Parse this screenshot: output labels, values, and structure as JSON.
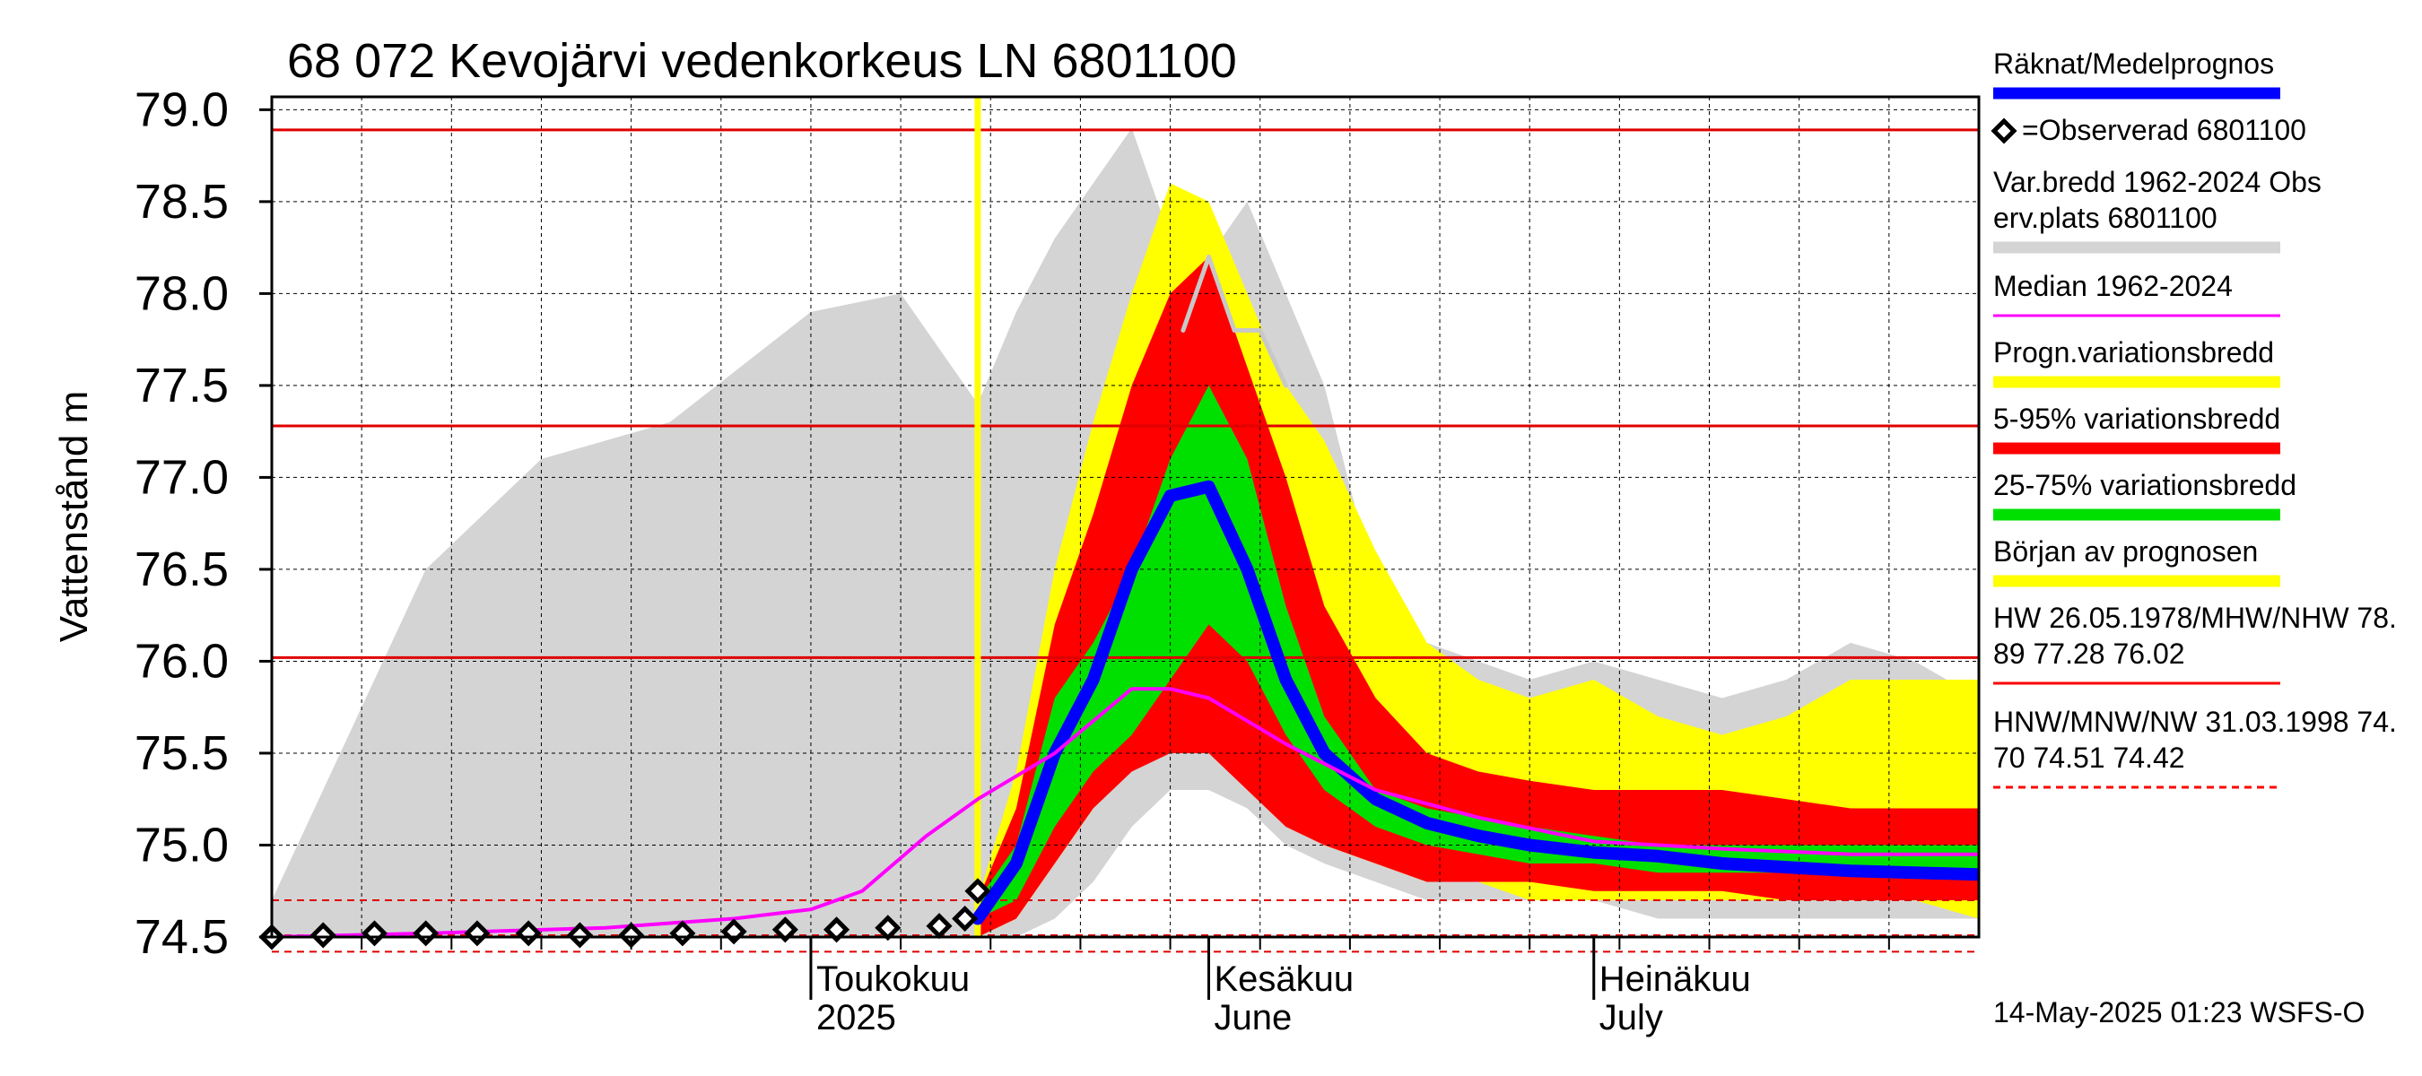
{
  "chart_data": {
    "type": "line",
    "title": "68 072 Kevojärvi vedenkorkeus LN 6801100",
    "ylabel": "Vattenstånd m",
    "ylim": [
      74.5,
      79.0
    ],
    "yticks": [
      "79.0",
      "78.5",
      "78.0",
      "77.5",
      "77.0",
      "76.5",
      "76.0",
      "75.5",
      "75.0",
      "74.5"
    ],
    "xlim": [
      "2025-03-20",
      "2025-07-31"
    ],
    "x_month_labels": [
      {
        "date": "2025-05-01",
        "line1": "Toukokuu",
        "line2": "2025"
      },
      {
        "date": "2025-06-01",
        "line1": "Kesäkuu",
        "line2": "June"
      },
      {
        "date": "2025-07-01",
        "line1": "Heinäkuu",
        "line2": "July"
      }
    ],
    "forecast_start": "2025-05-14",
    "reference_lines": [
      {
        "name": "HW",
        "value": 78.89,
        "style": "solid"
      },
      {
        "name": "MHW",
        "value": 77.28,
        "style": "solid"
      },
      {
        "name": "NHW",
        "value": 76.02,
        "style": "solid"
      },
      {
        "name": "HNW",
        "value": 74.7,
        "style": "dashed"
      },
      {
        "name": "MNW",
        "value": 74.51,
        "style": "dashed"
      },
      {
        "name": "NW",
        "value": 74.42,
        "style": "dashed"
      }
    ],
    "band_dates": [
      "2025-03-20",
      "2025-04-01",
      "2025-04-10",
      "2025-04-20",
      "2025-05-01",
      "2025-05-08",
      "2025-05-14",
      "2025-05-17",
      "2025-05-20",
      "2025-05-23",
      "2025-05-26",
      "2025-05-29",
      "2025-06-01",
      "2025-06-04",
      "2025-06-07",
      "2025-06-10",
      "2025-06-14",
      "2025-06-18",
      "2025-06-22",
      "2025-06-26",
      "2025-07-01",
      "2025-07-06",
      "2025-07-11",
      "2025-07-16",
      "2025-07-21",
      "2025-07-26",
      "2025-07-31"
    ],
    "series": [
      {
        "name": "Var.bredd 1962-2024 Obs erv.plats 6801100",
        "type": "band",
        "color": "#d4d4d4",
        "lower": [
          74.5,
          74.5,
          74.5,
          74.5,
          74.5,
          74.5,
          74.5,
          74.5,
          74.6,
          74.8,
          75.1,
          75.3,
          75.3,
          75.2,
          75.0,
          74.9,
          74.8,
          74.7,
          74.7,
          74.7,
          74.7,
          74.6,
          74.6,
          74.6,
          74.6,
          74.6,
          74.6
        ],
        "upper": [
          74.7,
          76.5,
          77.1,
          77.3,
          77.9,
          78.0,
          77.4,
          77.9,
          78.3,
          78.6,
          78.9,
          78.3,
          78.2,
          78.5,
          78.0,
          77.5,
          76.4,
          76.1,
          76.0,
          75.9,
          76.0,
          75.9,
          75.8,
          75.9,
          76.1,
          76.0,
          75.8
        ]
      },
      {
        "name": "Progn.variationsbredd",
        "type": "band",
        "color": "#ffff00",
        "lower": [
          null,
          null,
          null,
          null,
          null,
          null,
          74.5,
          74.6,
          74.9,
          75.2,
          75.5,
          75.6,
          75.6,
          75.4,
          75.2,
          75.0,
          74.9,
          74.8,
          74.8,
          74.7,
          74.7,
          74.7,
          74.7,
          74.7,
          74.7,
          74.7,
          74.6
        ],
        "upper": [
          null,
          null,
          null,
          null,
          null,
          null,
          74.7,
          75.4,
          76.5,
          77.3,
          78.0,
          78.6,
          78.5,
          78.0,
          77.5,
          77.2,
          76.6,
          76.1,
          75.9,
          75.8,
          75.9,
          75.7,
          75.6,
          75.7,
          75.9,
          75.9,
          75.9
        ]
      },
      {
        "name": "5-95% variationsbredd",
        "type": "band",
        "color": "#ff0000",
        "lower": [
          null,
          null,
          null,
          null,
          null,
          null,
          74.5,
          74.6,
          74.9,
          75.2,
          75.4,
          75.5,
          75.5,
          75.3,
          75.1,
          75.0,
          74.9,
          74.8,
          74.8,
          74.8,
          74.75,
          74.75,
          74.75,
          74.7,
          74.7,
          74.7,
          74.7
        ],
        "upper": [
          null,
          null,
          null,
          null,
          null,
          null,
          74.7,
          75.2,
          76.2,
          76.8,
          77.5,
          78.0,
          78.2,
          77.6,
          77.0,
          76.3,
          75.8,
          75.5,
          75.4,
          75.35,
          75.3,
          75.3,
          75.3,
          75.25,
          75.2,
          75.2,
          75.2
        ]
      },
      {
        "name": "25-75% variationsbredd",
        "type": "band",
        "color": "#00e000",
        "lower": [
          null,
          null,
          null,
          null,
          null,
          null,
          74.6,
          74.7,
          75.1,
          75.4,
          75.6,
          75.9,
          76.2,
          76.0,
          75.6,
          75.3,
          75.1,
          75.0,
          74.95,
          74.9,
          74.9,
          74.85,
          74.85,
          74.85,
          74.85,
          74.85,
          74.85
        ],
        "upper": [
          null,
          null,
          null,
          null,
          null,
          null,
          74.7,
          75.0,
          75.8,
          76.1,
          76.5,
          77.1,
          77.5,
          77.1,
          76.3,
          75.7,
          75.3,
          75.2,
          75.15,
          75.1,
          75.05,
          75.0,
          75.0,
          75.0,
          75.0,
          75.0,
          75.0
        ]
      },
      {
        "name": "Räknat/Medelprognos",
        "type": "line",
        "color": "#0000ff",
        "x": [
          "2025-05-14",
          "2025-05-17",
          "2025-05-20",
          "2025-05-23",
          "2025-05-26",
          "2025-05-29",
          "2025-06-01",
          "2025-06-04",
          "2025-06-07",
          "2025-06-10",
          "2025-06-14",
          "2025-06-18",
          "2025-06-22",
          "2025-06-26",
          "2025-07-01",
          "2025-07-06",
          "2025-07-11",
          "2025-07-16",
          "2025-07-21",
          "2025-07-26",
          "2025-07-31"
        ],
        "y": [
          74.6,
          74.9,
          75.5,
          75.9,
          76.5,
          76.9,
          76.95,
          76.5,
          75.9,
          75.5,
          75.25,
          75.12,
          75.05,
          75.0,
          74.96,
          74.94,
          74.9,
          74.88,
          74.86,
          74.85,
          74.84
        ]
      },
      {
        "name": "Median 1962-2024",
        "type": "line",
        "color": "#ff00ff",
        "x": [
          "2025-03-20",
          "2025-04-01",
          "2025-04-15",
          "2025-04-25",
          "2025-05-01",
          "2025-05-05",
          "2025-05-10",
          "2025-05-14",
          "2025-05-20",
          "2025-05-26",
          "2025-05-29",
          "2025-06-01",
          "2025-06-07",
          "2025-06-14",
          "2025-06-22",
          "2025-07-01",
          "2025-07-11",
          "2025-07-21",
          "2025-07-31"
        ],
        "y": [
          74.5,
          74.52,
          74.55,
          74.6,
          74.65,
          74.75,
          75.05,
          75.25,
          75.5,
          75.85,
          75.85,
          75.8,
          75.55,
          75.3,
          75.15,
          75.02,
          74.98,
          74.95,
          74.95
        ]
      },
      {
        "name": "Obs light gray",
        "type": "line",
        "color": "#c8c8c8",
        "x": [
          "2025-05-30",
          "2025-06-01",
          "2025-06-03",
          "2025-06-05",
          "2025-06-07"
        ],
        "y": [
          77.8,
          78.2,
          77.8,
          77.8,
          77.5
        ]
      },
      {
        "name": "=Observerad 6801100",
        "type": "markers",
        "color": "#000000",
        "x": [
          "2025-03-20",
          "2025-03-24",
          "2025-03-28",
          "2025-04-01",
          "2025-04-05",
          "2025-04-09",
          "2025-04-13",
          "2025-04-17",
          "2025-04-21",
          "2025-04-25",
          "2025-04-29",
          "2025-05-03",
          "2025-05-07",
          "2025-05-11",
          "2025-05-13",
          "2025-05-14"
        ],
        "y": [
          74.5,
          74.51,
          74.52,
          74.52,
          74.52,
          74.52,
          74.51,
          74.51,
          74.52,
          74.53,
          74.54,
          74.54,
          74.55,
          74.56,
          74.6,
          74.75
        ]
      }
    ],
    "grid": true,
    "legend_position": "right"
  },
  "legend": {
    "items": [
      {
        "text1": "Räknat/Medelprognos",
        "text2": "",
        "color": "#0000ff",
        "style": "thick"
      },
      {
        "text1": "=Observerad 6801100",
        "text2": "",
        "color": "#000000",
        "style": "marker"
      },
      {
        "text1": "Var.bredd 1962-2024   Obs",
        "text2": "erv.plats 6801100",
        "color": "#d4d4d4",
        "style": "thick"
      },
      {
        "text1": "Median 1962-2024",
        "text2": "",
        "color": "#ff00ff",
        "style": "thin"
      },
      {
        "text1": "Progn.variationsbredd",
        "text2": "",
        "color": "#ffff00",
        "style": "thick"
      },
      {
        "text1": "5-95% variationsbredd",
        "text2": "",
        "color": "#ff0000",
        "style": "thick"
      },
      {
        "text1": "25-75% variationsbredd",
        "text2": "",
        "color": "#00e000",
        "style": "thick"
      },
      {
        "text1": "Början av prognosen",
        "text2": "",
        "color": "#ffff00",
        "style": "thick"
      },
      {
        "text1": "HW 26.05.1978/MHW/NHW 78.",
        "text2": "89 77.28 76.02",
        "color": "#ff0000",
        "style": "thin"
      },
      {
        "text1": "HNW/MNW/NW 31.03.1998 74.",
        "text2": "70 74.51 74.42",
        "color": "#ff0000",
        "style": "dashed"
      }
    ]
  },
  "footer": "14-May-2025 01:23 WSFS-O"
}
